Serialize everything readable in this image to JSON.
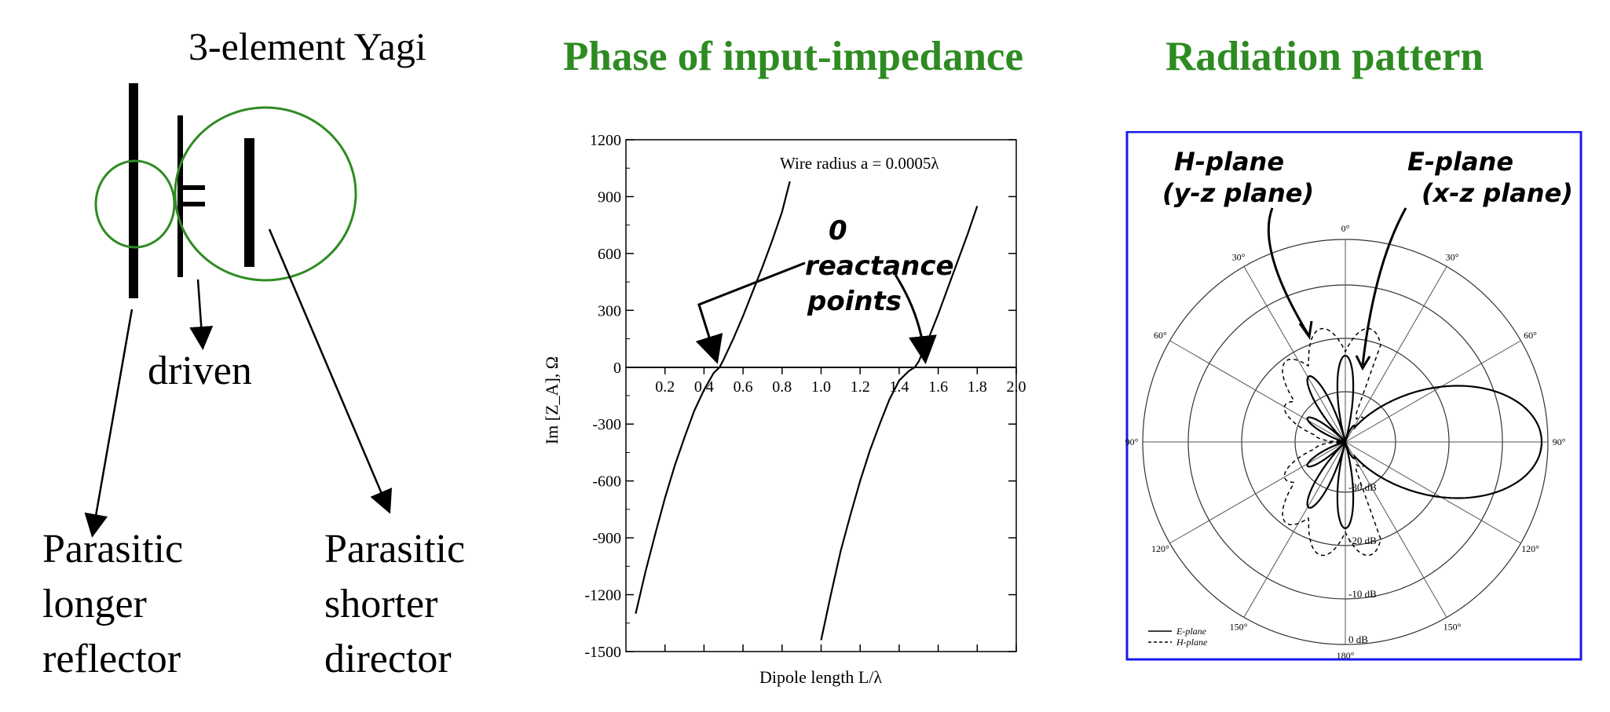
{
  "yagi": {
    "title": "3-element Yagi",
    "driven_label": "driven",
    "reflector_label": [
      "Parasitic",
      "longer",
      "reflector"
    ],
    "director_label": [
      "Parasitic",
      "shorter",
      "director"
    ]
  },
  "titles": {
    "phase": "Phase of input-impedance",
    "pattern": "Radiation pattern"
  },
  "colors": {
    "title_green": "#2e8b22",
    "frame_blue": "#1a1aee"
  },
  "chart_data": [
    {
      "type": "line",
      "title": "",
      "xlabel": "Dipole length L/λ",
      "ylabel": "Im [Z_A], Ω",
      "xlim": [
        0,
        2.0
      ],
      "ylim": [
        -1500,
        1200
      ],
      "x_ticks": [
        "0.2",
        "0.4",
        "0.6",
        "0.8",
        "1.0",
        "1.2",
        "1.4",
        "1.6",
        "1.8",
        "2.0"
      ],
      "y_ticks": [
        "1200",
        "900",
        "600",
        "300",
        "0",
        "-300",
        "-600",
        "-900",
        "-1200",
        "-1500"
      ],
      "annotation": "Wire radius a = 0.0005λ",
      "handwritten_note": [
        "0",
        "reactance",
        "points"
      ],
      "series": [
        {
          "x": [
            0.05,
            0.1,
            0.15,
            0.2,
            0.25,
            0.3,
            0.35,
            0.4,
            0.45,
            0.48,
            0.5,
            0.55,
            0.6,
            0.65,
            0.7,
            0.75,
            0.8,
            0.84
          ],
          "y": [
            -1300,
            -1080,
            -880,
            -690,
            -520,
            -370,
            -230,
            -120,
            -30,
            0,
            40,
            150,
            270,
            400,
            530,
            670,
            820,
            980
          ]
        },
        {
          "x": [
            1.0,
            1.05,
            1.1,
            1.15,
            1.2,
            1.25,
            1.3,
            1.35,
            1.4,
            1.45,
            1.48,
            1.5,
            1.55,
            1.6,
            1.65,
            1.7,
            1.75,
            1.8
          ],
          "y": [
            -1440,
            -1200,
            -970,
            -780,
            -600,
            -440,
            -300,
            -170,
            -70,
            -20,
            0,
            30,
            150,
            280,
            420,
            560,
            700,
            850
          ]
        }
      ]
    },
    {
      "type": "polar",
      "angle_labels": [
        "0°",
        "30°",
        "60°",
        "90°",
        "120°",
        "150°",
        "180°",
        "150°",
        "120°",
        "90°",
        "60°",
        "30°"
      ],
      "radial_labels": [
        "-30 dB",
        "-20 dB",
        "-10 dB",
        "0 dB"
      ],
      "handwritten_labels": {
        "h_plane": [
          "H-plane",
          "(y-z plane)"
        ],
        "e_plane": [
          "E-plane",
          "(x-z plane)"
        ]
      },
      "legend": [
        {
          "name": "E-plane",
          "style": "solid"
        },
        {
          "name": "H-plane",
          "style": "dashed"
        }
      ]
    }
  ]
}
